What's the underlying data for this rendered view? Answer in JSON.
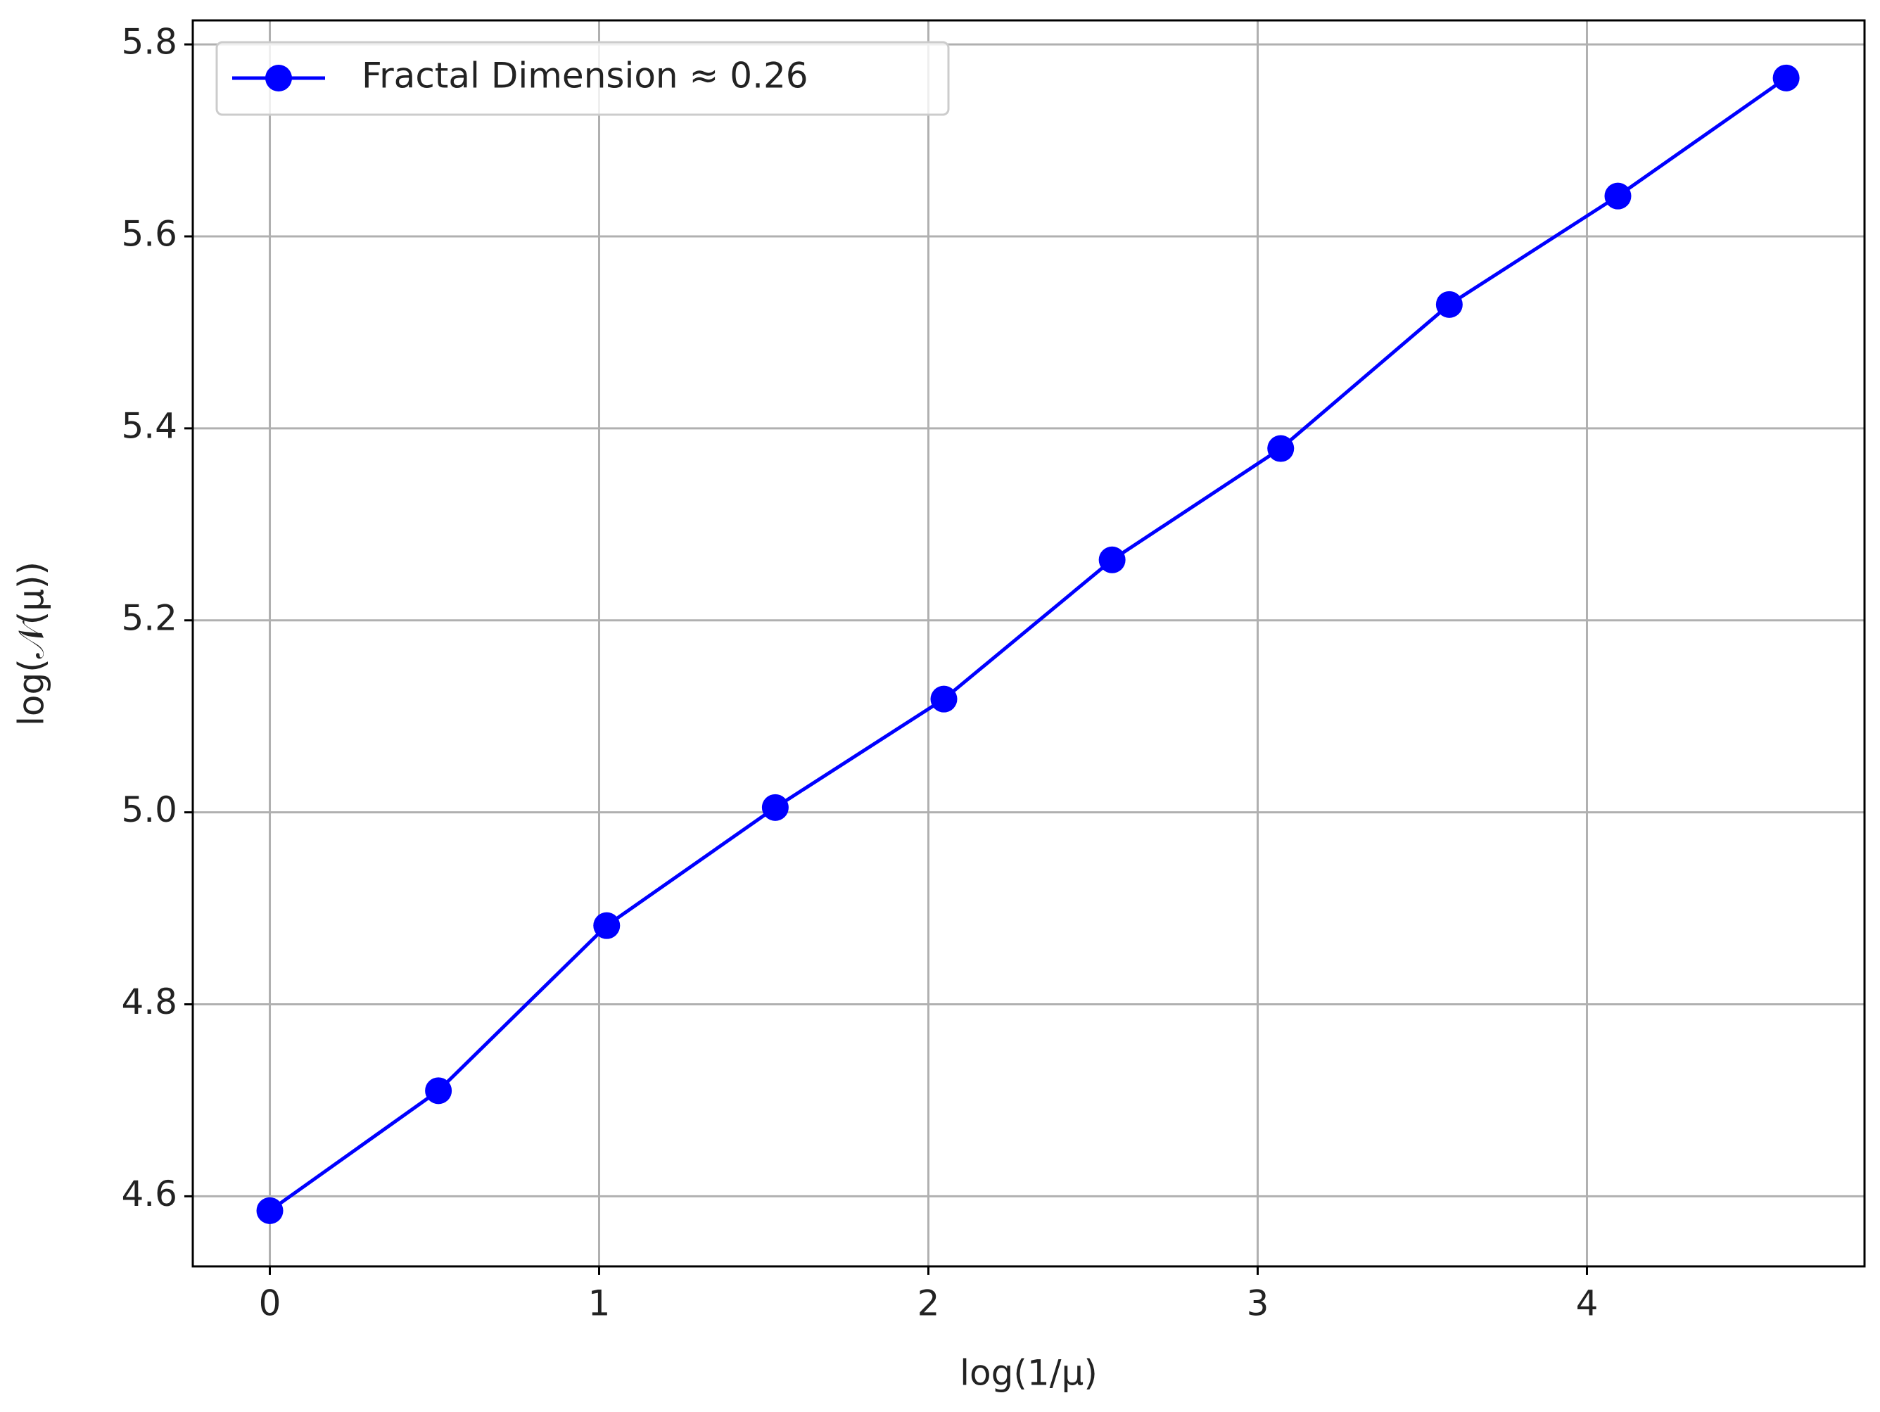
{
  "chart_data": {
    "type": "line",
    "x_label": "log(1/μ)",
    "y_label": "log(𝒩(μ))",
    "x": [
      0,
      0.512,
      1.023,
      1.535,
      2.047,
      2.558,
      3.07,
      3.582,
      4.094,
      4.605
    ],
    "series": [
      {
        "name": "Fractal Dimension ≈ 0.26",
        "color": "#0000ff",
        "values": [
          4.585,
          4.71,
          4.882,
          5.005,
          5.118,
          5.263,
          5.379,
          5.529,
          5.642,
          5.765
        ]
      }
    ],
    "xlim": [
      -0.234,
      4.843
    ],
    "ylim": [
      4.527,
      5.825
    ],
    "xticks": [
      0,
      1,
      2,
      3,
      4
    ],
    "yticks": [
      4.6,
      4.8,
      {
        "value": 5,
        "label": "5.0"
      },
      5.2,
      5.4,
      5.6,
      5.8
    ],
    "grid": true,
    "legend": "upper-left"
  }
}
